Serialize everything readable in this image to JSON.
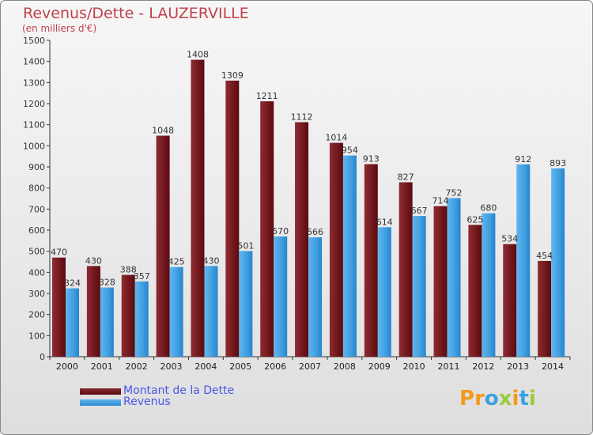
{
  "title": "Revenus/Dette - LAUZERVILLE",
  "subtitle": "(en milliers d'€)",
  "legend": {
    "debt_label": "Montant de la Dette",
    "revenue_label": "Revenus"
  },
  "logo": {
    "letters": [
      "P",
      "r",
      "o",
      "x",
      "i",
      "t",
      "i"
    ]
  },
  "colors": {
    "title": "#c0424a",
    "debt_top": "#8a2a2f",
    "debt_bottom": "#5a0b10",
    "revenue_top": "#5fb4ec",
    "revenue_bottom": "#2c8dd3",
    "legend_text": "#4a55e8"
  },
  "chart_data": {
    "type": "bar",
    "title": "Revenus/Dette - LAUZERVILLE",
    "subtitle": "(en milliers d'€)",
    "categories": [
      "2000",
      "2001",
      "2002",
      "2003",
      "2004",
      "2005",
      "2006",
      "2007",
      "2008",
      "2009",
      "2010",
      "2011",
      "2012",
      "2013",
      "2014"
    ],
    "series": [
      {
        "name": "Montant de la Dette",
        "values": [
          470,
          430,
          388,
          1048,
          1408,
          1309,
          1211,
          1112,
          1014,
          913,
          827,
          714,
          625,
          534,
          454
        ]
      },
      {
        "name": "Revenus",
        "values": [
          324,
          328,
          357,
          425,
          430,
          501,
          570,
          566,
          954,
          614,
          667,
          752,
          680,
          912,
          893
        ]
      }
    ],
    "ylim": [
      0,
      1500
    ],
    "yticks": [
      0,
      100,
      200,
      300,
      400,
      500,
      600,
      700,
      800,
      900,
      1000,
      1100,
      1200,
      1300,
      1400,
      1500
    ],
    "xlabel": "",
    "ylabel": "",
    "grid": false,
    "legend_position": "bottom-left"
  }
}
